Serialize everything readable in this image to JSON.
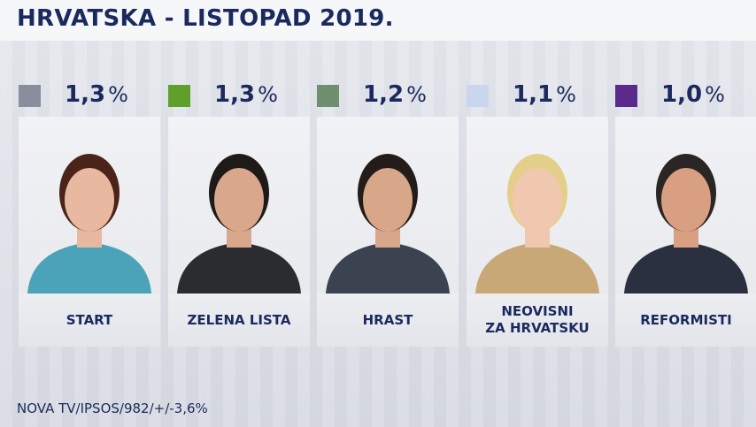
{
  "title": "HRVATSKA - LISTOPAD 2019.",
  "source": "NOVA TV/IPSOS/982/+/-3,6%",
  "chart_data": {
    "type": "bar",
    "categories": [
      "START",
      "ZELENA LISTA",
      "HRAST",
      "NEOVISNI\nZA HRVATSKU",
      "REFORMISTI"
    ],
    "values": [
      1.3,
      1.3,
      1.2,
      1.1,
      1.0
    ],
    "value_labels": [
      "1,3",
      "1,3",
      "1,2",
      "1,1",
      "1,0"
    ],
    "unit": "%",
    "colors": [
      "#8a8d9e",
      "#5ea02b",
      "#6f8f6e",
      "#c9d6ee",
      "#5a2a8a"
    ]
  }
}
